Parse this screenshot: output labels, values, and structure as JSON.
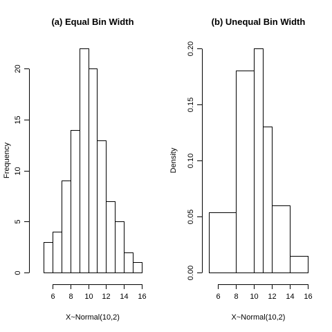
{
  "chart_data": [
    {
      "type": "bar",
      "id": "a",
      "title": "(a) Equal Bin Width",
      "xlabel": "X~Normal(10,2)",
      "ylabel": "Frequency",
      "xlim": [
        5,
        16
      ],
      "ylim": [
        0,
        22
      ],
      "x_ticks": [
        6,
        8,
        10,
        12,
        14,
        16
      ],
      "y_ticks": [
        0,
        5,
        10,
        15,
        20
      ],
      "y_tick_labels": [
        "0",
        "5",
        "10",
        "15",
        "20"
      ],
      "bins": [
        {
          "start": 5,
          "end": 6,
          "value": 3
        },
        {
          "start": 6,
          "end": 7,
          "value": 4
        },
        {
          "start": 7,
          "end": 8,
          "value": 9
        },
        {
          "start": 8,
          "end": 9,
          "value": 14
        },
        {
          "start": 9,
          "end": 10,
          "value": 22
        },
        {
          "start": 10,
          "end": 11,
          "value": 20
        },
        {
          "start": 11,
          "end": 12,
          "value": 13
        },
        {
          "start": 12,
          "end": 13,
          "value": 7
        },
        {
          "start": 13,
          "end": 14,
          "value": 5
        },
        {
          "start": 14,
          "end": 15,
          "value": 2
        },
        {
          "start": 15,
          "end": 16,
          "value": 1
        }
      ]
    },
    {
      "type": "bar",
      "id": "b",
      "title": "(b) Unequal Bin Width",
      "xlabel": "X~Normal(10,2)",
      "ylabel": "Density",
      "xlim": [
        5,
        16
      ],
      "ylim": [
        0,
        0.2
      ],
      "x_ticks": [
        6,
        8,
        10,
        12,
        14,
        16
      ],
      "y_ticks": [
        0,
        0.05,
        0.1,
        0.15,
        0.2
      ],
      "y_tick_labels": [
        "0.00",
        "0.05",
        "0.10",
        "0.15",
        "0.20"
      ],
      "bins": [
        {
          "start": 5,
          "end": 8,
          "value": 0.054
        },
        {
          "start": 8,
          "end": 10,
          "value": 0.18
        },
        {
          "start": 10,
          "end": 11,
          "value": 0.2
        },
        {
          "start": 11,
          "end": 12,
          "value": 0.13
        },
        {
          "start": 12,
          "end": 14,
          "value": 0.06
        },
        {
          "start": 14,
          "end": 16,
          "value": 0.015
        }
      ]
    }
  ]
}
